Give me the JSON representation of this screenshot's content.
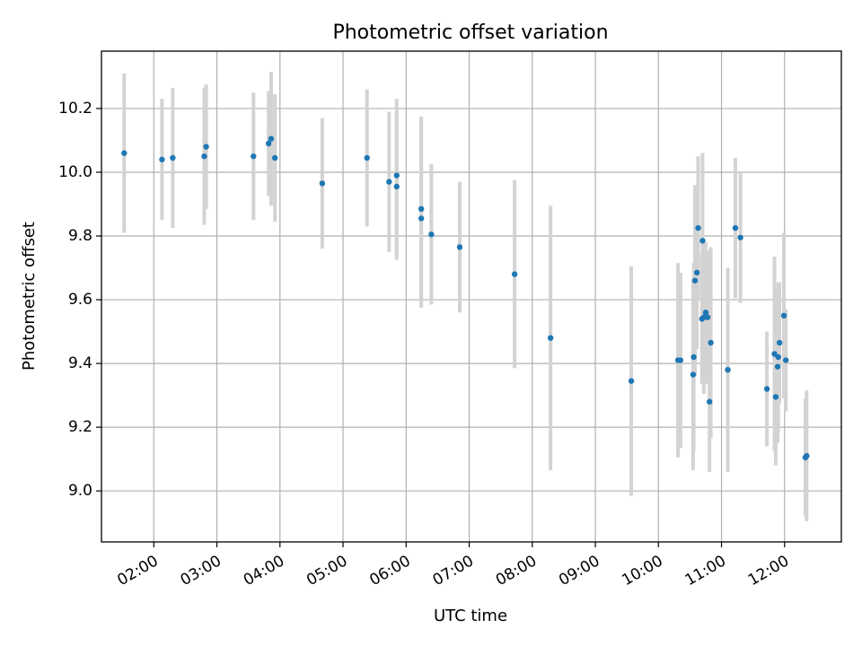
{
  "chart_data": {
    "type": "scatter",
    "title": "Photometric offset variation",
    "xlabel": "UTC time",
    "ylabel": "Photometric offset",
    "xlim": [
      1.17,
      12.9
    ],
    "ylim": [
      8.84,
      10.38
    ],
    "grid": true,
    "x_ticks": [
      2,
      3,
      4,
      5,
      6,
      7,
      8,
      9,
      10,
      11,
      12
    ],
    "x_tick_labels": [
      "02:00",
      "03:00",
      "04:00",
      "05:00",
      "06:00",
      "07:00",
      "08:00",
      "09:00",
      "10:00",
      "11:00",
      "12:00"
    ],
    "y_ticks": [
      9.0,
      9.2,
      9.4,
      9.6,
      9.8,
      10.0,
      10.2
    ],
    "y_tick_labels": [
      "9.0",
      "9.2",
      "9.4",
      "9.6",
      "9.8",
      "10.0",
      "10.2"
    ],
    "colors": {
      "point": "#1f77b4",
      "errorbar": "#d3d3d3",
      "grid": "#b0b0b0"
    },
    "series": [
      {
        "name": "Photometric offset",
        "x": [
          1.53,
          2.13,
          2.3,
          2.8,
          2.83,
          3.58,
          3.82,
          3.86,
          3.92,
          4.67,
          5.38,
          5.73,
          5.85,
          5.85,
          6.24,
          6.24,
          6.4,
          6.85,
          7.72,
          8.29,
          9.57,
          10.31,
          10.35,
          10.55,
          10.56,
          10.58,
          10.61,
          10.63,
          10.69,
          10.7,
          10.72,
          10.75,
          10.78,
          10.81,
          10.83,
          11.1,
          11.22,
          11.3,
          11.72,
          11.84,
          11.86,
          11.89,
          11.9,
          11.92,
          11.99,
          12.02,
          12.33,
          12.35
        ],
        "y": [
          10.06,
          10.04,
          10.045,
          10.05,
          10.08,
          10.05,
          10.09,
          10.105,
          10.045,
          9.965,
          10.045,
          9.97,
          9.955,
          9.99,
          9.885,
          9.855,
          9.805,
          9.765,
          9.68,
          9.48,
          9.345,
          9.41,
          9.41,
          9.365,
          9.42,
          9.66,
          9.685,
          9.825,
          9.54,
          9.785,
          9.545,
          9.56,
          9.545,
          9.28,
          9.465,
          9.38,
          9.825,
          9.795,
          9.32,
          9.43,
          9.295,
          9.39,
          9.42,
          9.465,
          9.55,
          9.41,
          9.105,
          9.11
        ],
        "err": [
          0.25,
          0.19,
          0.22,
          0.215,
          0.195,
          0.2,
          0.165,
          0.21,
          0.2,
          0.205,
          0.215,
          0.22,
          0.23,
          0.24,
          0.29,
          0.28,
          0.22,
          0.205,
          0.295,
          0.415,
          0.36,
          0.305,
          0.275,
          0.3,
          0.295,
          0.3,
          0.24,
          0.225,
          0.205,
          0.275,
          0.24,
          0.22,
          0.21,
          0.22,
          0.3,
          0.32,
          0.22,
          0.205,
          0.18,
          0.305,
          0.215,
          0.24,
          0.235,
          0.19,
          0.26,
          0.16,
          0.185,
          0.205
        ]
      }
    ]
  }
}
